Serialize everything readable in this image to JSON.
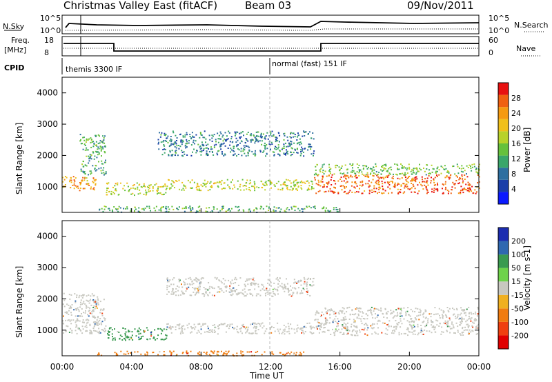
{
  "header": {
    "title": "Christmas Valley East (fitACF)",
    "beam": "Beam 03",
    "date": "09/Nov/2011"
  },
  "top_panels": {
    "nsky": {
      "label": "N.Sky",
      "right_label": "N.Search",
      "ytop": "10^5",
      "ybot": "10^0",
      "rtop": "10^5",
      "rbot": "10^0"
    },
    "freq": {
      "label": "Freq.",
      "unit": "[MHz]",
      "right_label": "Nave",
      "ytop": "18",
      "ybot": "8",
      "rtop": "60",
      "rbot": "0"
    },
    "cpid": {
      "label": "CPID",
      "modes": [
        "themis 3300 IF",
        "normal (fast) 151 IF"
      ]
    }
  },
  "axes": {
    "ylabel": "Slant Range [km]",
    "xlabel": "Time UT",
    "xticks": [
      "00:00",
      "04:00",
      "08:00",
      "12:00",
      "16:00",
      "20:00",
      "00:00"
    ],
    "yticks": [
      "1000",
      "2000",
      "3000",
      "4000"
    ]
  },
  "colorbars": {
    "power": {
      "label": "Power [dB]",
      "ticks": [
        "4",
        "8",
        "12",
        "16",
        "20",
        "24",
        "28"
      ],
      "colors": [
        "#0b1aff",
        "#1a3ea8",
        "#2d6fa0",
        "#3aa66a",
        "#66c13c",
        "#b8d22a",
        "#f0c01a",
        "#f59a10",
        "#f06010",
        "#e81010"
      ]
    },
    "velocity": {
      "label": "Velocity [m s-1]",
      "ticks": [
        "200",
        "100",
        "50",
        "15",
        "-15",
        "-50",
        "-100",
        "-200"
      ],
      "colors": [
        "#1c2db0",
        "#2f68b0",
        "#3a9a50",
        "#6ed24a",
        "#c8c8c0",
        "#f0b020",
        "#f07c10",
        "#f04010",
        "#e00000"
      ]
    }
  },
  "chart_data": {
    "type": "heatmap",
    "x_range": [
      "00:00",
      "24:00"
    ],
    "y_range_km": [
      180,
      4500
    ],
    "power_bands": [
      {
        "t0": 0.0,
        "t1": 2.0,
        "r0": 900,
        "r1": 1350,
        "level": 24
      },
      {
        "t0": 1.0,
        "t1": 2.5,
        "r0": 1400,
        "r1": 2700,
        "level": 12
      },
      {
        "t0": 2.5,
        "t1": 6.0,
        "r0": 750,
        "r1": 1150,
        "level": 18
      },
      {
        "t0": 6.0,
        "t1": 14.5,
        "r0": 900,
        "r1": 1250,
        "level": 18
      },
      {
        "t0": 5.5,
        "t1": 14.5,
        "r0": 2000,
        "r1": 2800,
        "level": 8
      },
      {
        "t0": 14.5,
        "t1": 24.0,
        "r0": 800,
        "r1": 1400,
        "level": 28
      },
      {
        "t0": 14.5,
        "t1": 24.0,
        "r0": 1400,
        "r1": 1750,
        "level": 14
      },
      {
        "t0": 2.0,
        "t1": 16.0,
        "r0": 200,
        "r1": 400,
        "level": 12
      }
    ],
    "velocity_bands": [
      {
        "t0": 0.0,
        "t1": 2.5,
        "r0": 900,
        "r1": 2200,
        "vel": 0
      },
      {
        "t0": 2.5,
        "t1": 6.0,
        "r0": 700,
        "r1": 1100,
        "vel": 40
      },
      {
        "t0": 6.0,
        "t1": 14.5,
        "r0": 900,
        "r1": 1250,
        "vel": 0
      },
      {
        "t0": 6.0,
        "t1": 14.5,
        "r0": 2100,
        "r1": 2700,
        "vel": 0
      },
      {
        "t0": 14.5,
        "t1": 24.0,
        "r0": 850,
        "r1": 1750,
        "vel": 0
      },
      {
        "t0": 2.0,
        "t1": 14.0,
        "r0": 200,
        "r1": 350,
        "vel": -50
      }
    ]
  }
}
